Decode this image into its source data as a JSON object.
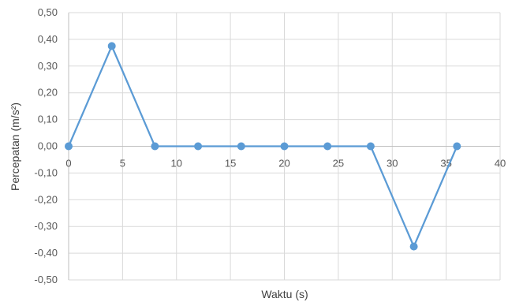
{
  "chart_data": {
    "type": "scatter",
    "mode": "lines+markers",
    "xlabel": "Waktu (s)",
    "ylabel": "Percepatan (m/s²)",
    "xlim": [
      0,
      40
    ],
    "ylim": [
      -0.5,
      0.5
    ],
    "x_ticks": [
      0,
      5,
      10,
      15,
      20,
      25,
      30,
      35,
      40
    ],
    "x_tick_labels": [
      "0",
      "5",
      "10",
      "15",
      "20",
      "25",
      "30",
      "35",
      "40"
    ],
    "y_ticks": [
      0.5,
      0.4,
      0.3,
      0.2,
      0.1,
      0.0,
      -0.1,
      -0.2,
      -0.3,
      -0.4,
      -0.5
    ],
    "y_tick_labels": [
      "0,50",
      "0,40",
      "0,30",
      "0,20",
      "0,10",
      "0,00",
      "-0,10",
      "-0,20",
      "-0,30",
      "-0,40",
      "-0,50"
    ],
    "grid": true,
    "legend": "none",
    "series": [
      {
        "x": [
          0,
          4,
          8,
          12,
          16,
          20,
          24,
          28,
          32,
          36
        ],
        "y": [
          0,
          0.375,
          0,
          0,
          0,
          0,
          0,
          0,
          -0.375,
          0
        ],
        "color": "#5b9bd5"
      }
    ]
  }
}
